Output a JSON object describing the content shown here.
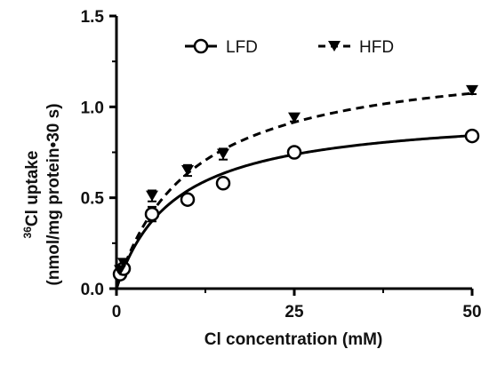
{
  "chart_data": {
    "type": "scatter",
    "xlabel": "Cl concentration (mM)",
    "ylabel_line1_sup": "36",
    "ylabel_line1": "Cl uptake",
    "ylabel_line2": "(nmol/mg protein•30 s)",
    "xlim": [
      0,
      50
    ],
    "ylim": [
      0,
      1.5
    ],
    "x_ticks": [
      0,
      25,
      50
    ],
    "x_tick_labels": [
      "0",
      "25",
      "50"
    ],
    "y_ticks": [
      0.0,
      0.5,
      1.0,
      1.5
    ],
    "y_tick_labels": [
      "0.0",
      "0.5",
      "1.0",
      "1.5"
    ],
    "grid": false,
    "legend_position": "top-center",
    "series": [
      {
        "name": "LFD",
        "marker": "open-circle",
        "line_style": "solid",
        "color": "#000000",
        "x": [
          0.5,
          1,
          5,
          10,
          15,
          25,
          50
        ],
        "y": [
          0.08,
          0.11,
          0.41,
          0.49,
          0.58,
          0.75,
          0.84
        ],
        "error": [
          0.02,
          0.02,
          0.04,
          0.02,
          0.02,
          0.02,
          0.02
        ],
        "fit": {
          "vmax": 0.98,
          "km": 8.2
        }
      },
      {
        "name": "HFD",
        "marker": "filled-down-triangle",
        "line_style": "dashed",
        "color": "#000000",
        "x": [
          0.5,
          1,
          5,
          10,
          15,
          25,
          50
        ],
        "y": [
          0.1,
          0.14,
          0.51,
          0.65,
          0.74,
          0.94,
          1.09
        ],
        "error": [
          0.02,
          0.02,
          0.03,
          0.03,
          0.03,
          0.02,
          0.02
        ],
        "fit": {
          "vmax": 1.3,
          "km": 10.5
        }
      }
    ]
  }
}
